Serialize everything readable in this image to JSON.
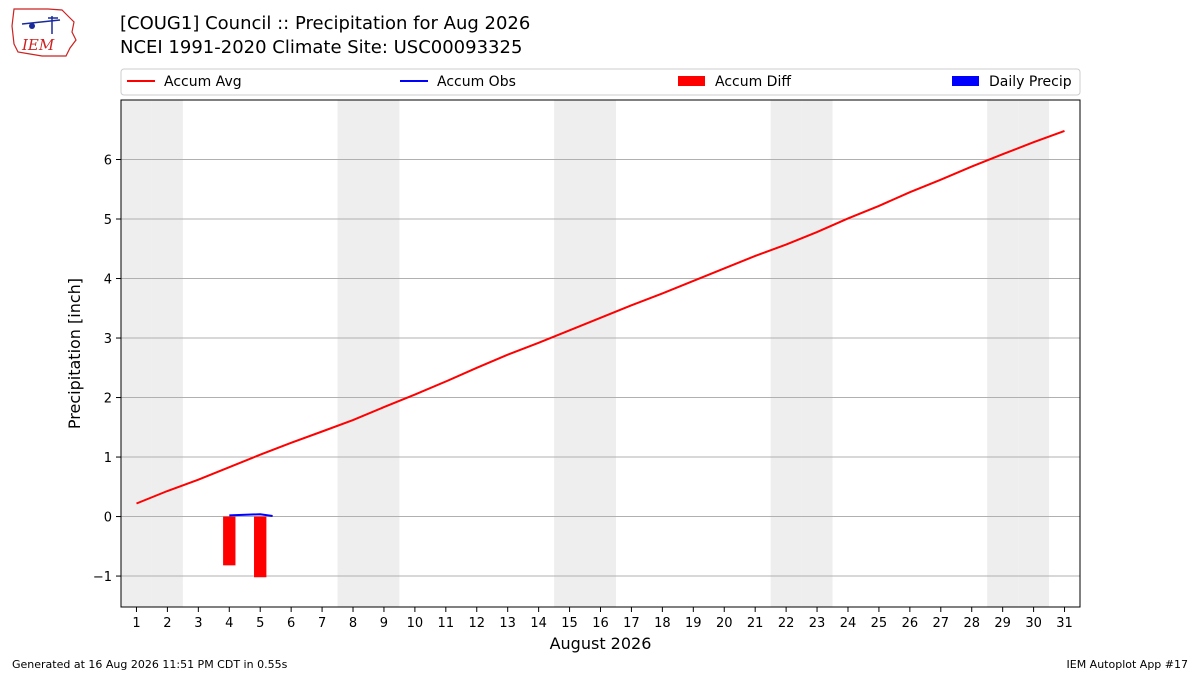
{
  "header": {
    "logo_text": "IEM",
    "title_line1": "[COUG1] Council :: Precipitation for Aug 2026",
    "title_line2": "NCEI 1991-2020 Climate Site: USC00093325"
  },
  "footer": {
    "left": "Generated at 16 Aug 2026 11:51 PM CDT in 0.55s",
    "right": "IEM Autoplot App #17"
  },
  "colors": {
    "accum_avg": "#ff0000",
    "accum_obs": "#0000ff",
    "accum_diff": "#ff0000",
    "daily_precip": "#0000ff",
    "weekend_band": "#eeeeee",
    "grid": "#b0b0b0"
  },
  "chart_data": {
    "type": "line",
    "xlabel": "August 2026",
    "ylabel": "Precipitation [inch]",
    "xlim": [
      0.5,
      31.5
    ],
    "ylim": [
      -1.52,
      7.0
    ],
    "x_ticks": [
      1,
      2,
      3,
      4,
      5,
      6,
      7,
      8,
      9,
      10,
      11,
      12,
      13,
      14,
      15,
      16,
      17,
      18,
      19,
      20,
      21,
      22,
      23,
      24,
      25,
      26,
      27,
      28,
      29,
      30,
      31
    ],
    "y_ticks": [
      -1,
      0,
      1,
      2,
      3,
      4,
      5,
      6
    ],
    "grid": "horizontal",
    "legend": {
      "placement": "top",
      "entries": [
        {
          "label": "Accum Avg",
          "kind": "line"
        },
        {
          "label": "Accum Obs",
          "kind": "line"
        },
        {
          "label": "Accum Diff",
          "kind": "bar"
        },
        {
          "label": "Daily Precip",
          "kind": "bar"
        }
      ]
    },
    "weekend_days": [
      1,
      2,
      8,
      9,
      15,
      16,
      22,
      23,
      29,
      30
    ],
    "series": [
      {
        "name": "Accum Avg",
        "type": "line",
        "x": [
          1,
          2,
          3,
          4,
          5,
          6,
          7,
          8,
          9,
          10,
          11,
          12,
          13,
          14,
          15,
          16,
          17,
          18,
          19,
          20,
          21,
          22,
          23,
          24,
          25,
          26,
          27,
          28,
          29,
          30,
          31
        ],
        "values": [
          0.22,
          0.43,
          0.62,
          0.83,
          1.04,
          1.24,
          1.43,
          1.62,
          1.84,
          2.05,
          2.27,
          2.5,
          2.72,
          2.92,
          3.13,
          3.34,
          3.55,
          3.75,
          3.96,
          4.17,
          4.38,
          4.57,
          4.78,
          5.01,
          5.22,
          5.45,
          5.66,
          5.88,
          6.09,
          6.29,
          6.48
        ]
      },
      {
        "name": "Accum Obs",
        "type": "line",
        "x": [
          4,
          5,
          5.4
        ],
        "values": [
          0.02,
          0.04,
          0.01
        ]
      },
      {
        "name": "Accum Diff",
        "type": "bar",
        "x": [
          4,
          5
        ],
        "values": [
          -0.82,
          -1.02
        ]
      },
      {
        "name": "Daily Precip",
        "type": "bar",
        "x": [
          4,
          5
        ],
        "values": [
          0.0,
          0.0
        ]
      }
    ]
  }
}
